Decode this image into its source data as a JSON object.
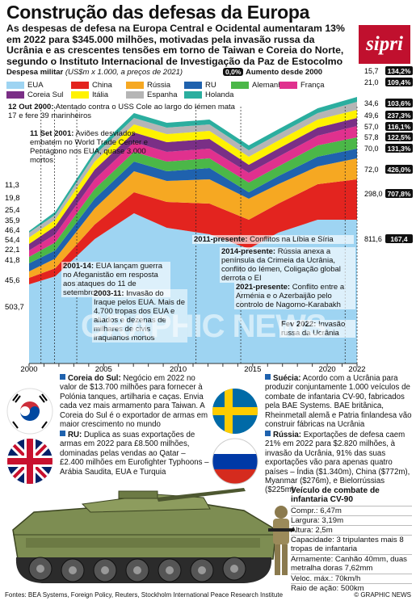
{
  "header": {
    "title": "Construção das defesas da Europa",
    "intro": "As despesas de defesa na Europa Central e Ocidental aumentaram 13% em 2022 para $345.000 milhões, motivadas pela invasão russa da Ucrânia e as crescentes tensões em torno de Taiwan e Coreia do Norte, segundo o Instituto Internacional de Investigação da Paz de Estocolmo",
    "logo": "sipri"
  },
  "legend": {
    "title_bold": "Despesa militar",
    "title_unit": "(US$m x 1.000, a preços de 2021)",
    "pct_badge": "0,0%",
    "pct_label": "Aumento desde 2000",
    "items": [
      {
        "name": "EUA",
        "color": "#9ed4f2"
      },
      {
        "name": "China",
        "color": "#e3241f"
      },
      {
        "name": "Rússia",
        "color": "#f6a822"
      },
      {
        "name": "RU",
        "color": "#1f62ae"
      },
      {
        "name": "Alemanha",
        "color": "#4bb748"
      },
      {
        "name": "França",
        "color": "#e0318e"
      },
      {
        "name": "Coreia Sul",
        "color": "#7a2f86"
      },
      {
        "name": "Itália",
        "color": "#fff200"
      },
      {
        "name": "Espanha",
        "color": "#b5b5b5"
      },
      {
        "name": "Holanda",
        "color": "#2bae9f"
      }
    ]
  },
  "chart_data": {
    "type": "area",
    "stacked": true,
    "xlim": [
      2000,
      2022
    ],
    "x_ticks": [
      "2000",
      "2005",
      "2010",
      "2015",
      "2020",
      "2022"
    ],
    "y_2000": [
      "11,3",
      "19,8",
      "25,4",
      "35,9",
      "46,4",
      "54,4",
      "22,1",
      "41,8",
      "45,6",
      "503,7"
    ],
    "y_2022": [
      "15,7",
      "21,0",
      "34,6",
      "49,6",
      "57,0",
      "57,8",
      "70,0",
      "72,0",
      "298,0",
      "811,6"
    ],
    "increase_2022": [
      "134,2%",
      "109,4%",
      "103,6%",
      "237,3%",
      "116,1%",
      "122,5%",
      "131,3%",
      "426,0%",
      "707,8%",
      "167,4"
    ],
    "series_order_bottom_to_top": [
      "EUA",
      "China",
      "Rússia",
      "RU",
      "Alemanha",
      "França",
      "Coreia Sul",
      "Itália",
      "Espanha",
      "Holanda"
    ],
    "annotations": [
      {
        "label": "12 Out 2000:",
        "text": "Atentado contra o USS Cole ao largo do Iémen mata 17 e fere 39 marinheiros"
      },
      {
        "label": "11 Set 2001:",
        "text": "Aviões desviados embatem no World Trade Center e Pentágono nos EUA, quase 3.000 mortos"
      },
      {
        "label": "2001-14:",
        "text": "EUA lançam guerra no Afeganistão em resposta aos ataques do 11 de setembro"
      },
      {
        "label": "2003-11:",
        "text": "Invasão do Iraque pelos EUA. Mais de 4.700 tropas dos EUA e aliados e dezenas de milhares de civis iraquianos mortos"
      },
      {
        "label": "2011-presente:",
        "text": "Conflitos na Líbia e Síria"
      },
      {
        "label": "2014-presente:",
        "text": "Rússia anexa a península da Crimeia da Ucrânia, conflito do Iémen, Coligação global derrota o EI"
      },
      {
        "label": "2021-presente:",
        "text": "Conflito entre a Arménia e o Azerbaijão pelo controlo de Nagorno-Karabakh"
      },
      {
        "label": "Fev 2022:",
        "text": "Invasão russa da Ucrânia"
      }
    ]
  },
  "profiles": [
    {
      "country": "Coreia do Sul:",
      "text": "Negócio em 2022 no valor de $13.700 milhões para fornecer à Polónia tanques, artilharia e caças. Envia cada vez mais armamento para Taiwan. A Coreia do Sul é o exportador de armas em maior crescimento no mundo"
    },
    {
      "country": "RU:",
      "text": "Duplica as suas exportações de armas em 2022 para £8.500 milhões, dominadas pelas vendas ao Qatar – £2.400 milhões em Eurofighter Typhoons – Arábia Saudita, EUA e Turquia"
    },
    {
      "country": "Suécia:",
      "text": "Acordo com a Ucrânia para produzir conjuntamente 1.000 veículos de combate de infantaria CV-90, fabricados pela BAE Systems. BAE britânica, Rheinmetall alemã e Patria finlandesa vão construir fábricas na Ucrânia"
    },
    {
      "country": "Rússia:",
      "text": "Exportações de defesa caem 21% em 2022 para $2.820 milhões, à invasão da Ucrânia, 91% das suas exportações vão para apenas quatro países – Índia ($1.340m), China ($772m), Myanmar ($276m), e Bielorrússias ($225m)"
    }
  ],
  "vehicle": {
    "title": "Veículo de combate de infantaria CV-90",
    "specs": [
      "Compr.: 6,47m",
      "Largura: 3,19m",
      "Altura: 2,5m",
      "Capacidade: 3 tripulantes mais 8 tropas de infantaria",
      "Armamente: Canhão 40mm, duas metralha doras 7,62mm",
      "Veloc. máx.: 70km/h",
      "Raio de ação: 500km"
    ]
  },
  "footer": {
    "sources": "Fontes: BEA Systems, Foreign Policy, Reuters, Stockholm International Peace Research Institute",
    "credit": "© GRAPHIC NEWS",
    "watermark": "GRAPHIC NEWS"
  }
}
